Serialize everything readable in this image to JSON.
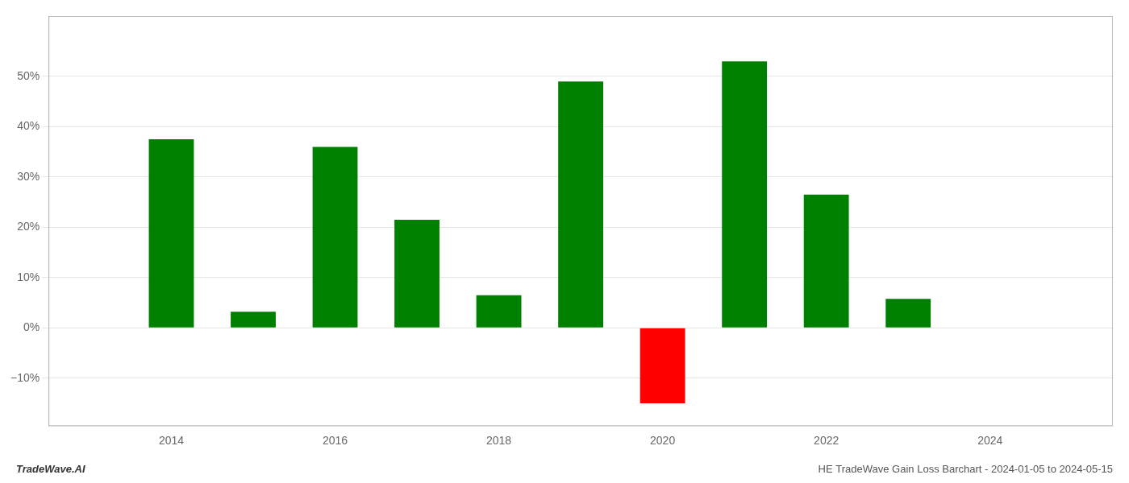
{
  "chart_data": {
    "type": "bar",
    "x": [
      2014,
      2015,
      2016,
      2017,
      2018,
      2019,
      2020,
      2021,
      2022,
      2023
    ],
    "values": [
      0.375,
      0.032,
      0.36,
      0.215,
      0.065,
      0.49,
      -0.15,
      0.53,
      0.265,
      0.058
    ],
    "colors": [
      "#008000",
      "#008000",
      "#008000",
      "#008000",
      "#008000",
      "#008000",
      "#ff0000",
      "#008000",
      "#008000",
      "#008000"
    ],
    "xlim": [
      2012.5,
      2025.5
    ],
    "xticks": [
      2014,
      2016,
      2018,
      2020,
      2022,
      2024
    ],
    "ylim": [
      -0.195,
      0.62
    ],
    "yticks": [
      {
        "value": -0.1,
        "label": "−10%"
      },
      {
        "value": 0,
        "label": "0%"
      },
      {
        "value": 0.1,
        "label": "10%"
      },
      {
        "value": 0.2,
        "label": "20%"
      },
      {
        "value": 0.3,
        "label": "30%"
      },
      {
        "value": 0.4,
        "label": "40%"
      },
      {
        "value": 0.5,
        "label": "50%"
      }
    ],
    "grid": "y",
    "annotations": [
      "TradeWave.AI",
      "HE TradeWave Gain Loss Barchart - 2024-01-05 to 2024-05-15"
    ]
  }
}
